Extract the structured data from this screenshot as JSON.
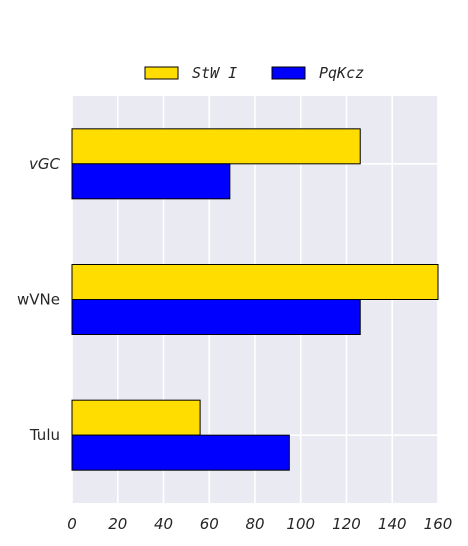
{
  "chart_data": {
    "type": "bar",
    "orientation": "horizontal",
    "categories": [
      "vGC",
      "wVNe",
      "Tulu"
    ],
    "category_italic": [
      true,
      false,
      false
    ],
    "series": [
      {
        "name": "StW I",
        "color": "#FFDD00",
        "values": [
          126,
          160,
          56
        ]
      },
      {
        "name": "PqKcz",
        "color": "#0000FF",
        "values": [
          69,
          126,
          95
        ]
      }
    ],
    "xlim": [
      0,
      160
    ],
    "xticks": [
      "0",
      "20",
      "40",
      "60",
      "80",
      "100",
      "120",
      "140",
      "160"
    ],
    "grid": true,
    "legend_position": "top-center",
    "background": "#EAEAF2"
  }
}
